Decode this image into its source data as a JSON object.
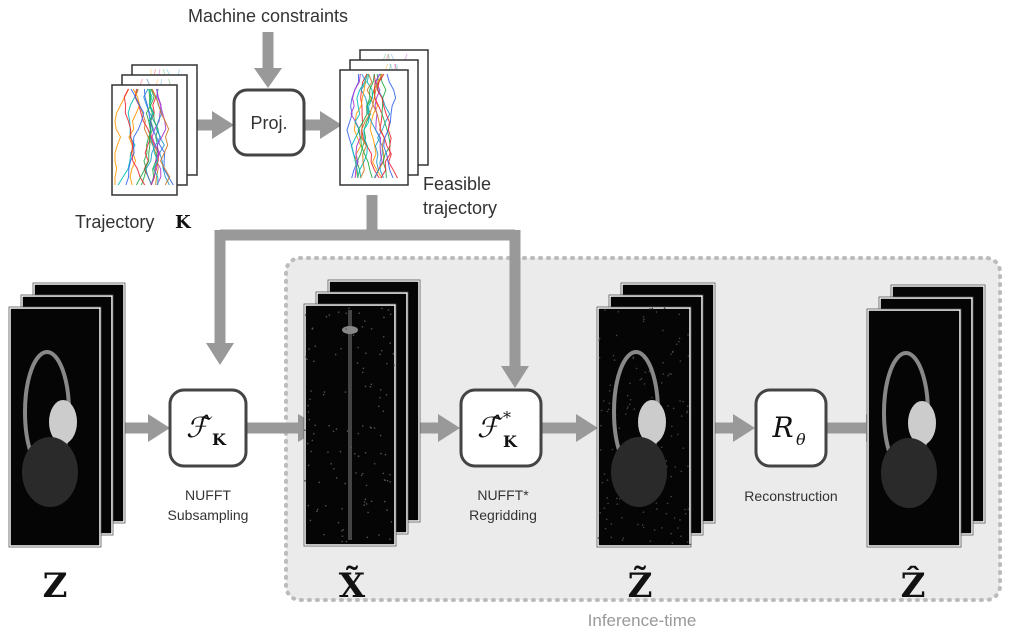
{
  "top": {
    "machine_constraints": "Machine constraints",
    "proj": "Proj.",
    "feasible_trajectory": [
      "Feasible",
      "trajectory"
    ],
    "trajectory": {
      "label": "Trajectory",
      "symbol": "K"
    }
  },
  "blocks": [
    {
      "symbol": "ℱ̂",
      "sub": "K",
      "caption": [
        "NUFFT",
        "Subsampling"
      ]
    },
    {
      "symbol": "ℱ̂",
      "sup": "*",
      "sub": "K",
      "caption": [
        "NUFFT*",
        "Regridding"
      ]
    },
    {
      "symbol": "R",
      "sub": "θ",
      "caption": [
        "Reconstruction"
      ]
    }
  ],
  "images": [
    "Z",
    "X̃",
    "Z̃",
    "Ẑ"
  ],
  "region": "Inference-time"
}
